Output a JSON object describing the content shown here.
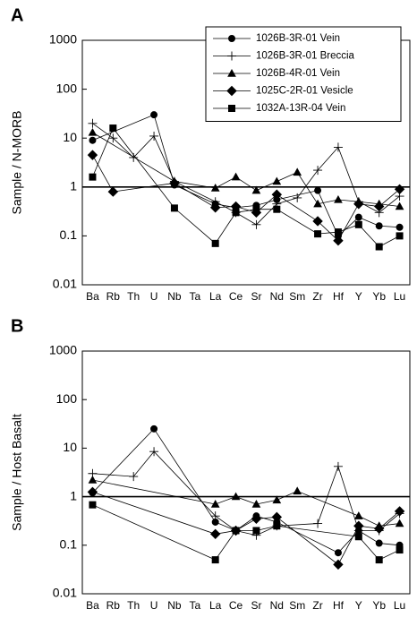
{
  "chart_data": [
    {
      "type": "line",
      "label": "A",
      "ylabel": "Sample / N-MORB",
      "log_y": true,
      "hline": 1,
      "categories": [
        "Ba",
        "Rb",
        "Th",
        "U",
        "Nb",
        "Ta",
        "La",
        "Ce",
        "Sr",
        "Nd",
        "Sm",
        "Zr",
        "Hf",
        "Y",
        "Yb",
        "Lu"
      ],
      "ylim": [
        0.01,
        1000
      ],
      "yticks": [
        0.01,
        0.1,
        1,
        10,
        100,
        1000
      ],
      "legend": "top-right",
      "series": [
        {
          "name": "1026B-3R-01 Vein",
          "marker": "circle",
          "color": "#000000",
          "x": [
            "Ba",
            "U",
            "Nb",
            "La",
            "Ce",
            "Sr",
            "Nd",
            "Zr",
            "Hf",
            "Y",
            "Yb",
            "Lu"
          ],
          "values": [
            9,
            30,
            1.1,
            0.45,
            0.38,
            0.42,
            0.55,
            0.85,
            0.1,
            0.24,
            0.16,
            0.15
          ]
        },
        {
          "name": "1026B-3R-01 Breccia",
          "marker": "plus",
          "color": "#000000",
          "x": [
            "Ba",
            "Rb",
            "Th",
            "U",
            "Nb",
            "La",
            "Ce",
            "Sr",
            "Nd",
            "Sm",
            "Zr",
            "Hf",
            "Y",
            "Yb",
            "Lu"
          ],
          "values": [
            20,
            10,
            4,
            11,
            1.3,
            0.5,
            0.3,
            0.17,
            0.45,
            0.6,
            2.2,
            6.5,
            0.5,
            0.3,
            0.65
          ]
        },
        {
          "name": "1026B-4R-01 Vein",
          "marker": "triangle",
          "color": "#000000",
          "x": [
            "Ba",
            "Nb",
            "La",
            "Ce",
            "Sr",
            "Nd",
            "Sm",
            "Zr",
            "Hf",
            "Y",
            "Yb",
            "Lu"
          ],
          "values": [
            13,
            1.3,
            0.95,
            1.6,
            0.85,
            1.3,
            2,
            0.45,
            0.55,
            0.5,
            0.45,
            0.4
          ]
        },
        {
          "name": "1025C-2R-01 Vesicle",
          "marker": "diamond",
          "color": "#000000",
          "x": [
            "Ba",
            "Rb",
            "Nb",
            "La",
            "Ce",
            "Sr",
            "Nd",
            "Zr",
            "Hf",
            "Y",
            "Yb",
            "Lu"
          ],
          "values": [
            4.5,
            0.8,
            1.2,
            0.38,
            0.4,
            0.3,
            0.7,
            0.2,
            0.08,
            0.45,
            0.4,
            0.9
          ]
        },
        {
          "name": "1032A-13R-04 Vein",
          "marker": "square",
          "color": "#000000",
          "x": [
            "Ba",
            "Rb",
            "Nb",
            "La",
            "Ce",
            "Sr",
            "Nd",
            "Zr",
            "Hf",
            "Y",
            "Yb",
            "Lu"
          ],
          "values": [
            1.6,
            16,
            0.37,
            0.07,
            0.3,
            0.35,
            0.35,
            0.11,
            0.12,
            0.17,
            0.06,
            0.1
          ]
        }
      ]
    },
    {
      "type": "line",
      "label": "B",
      "ylabel": "Sample / Host Basalt",
      "log_y": true,
      "hline": 1,
      "categories": [
        "Ba",
        "Rb",
        "Th",
        "U",
        "Nb",
        "Ta",
        "La",
        "Ce",
        "Sr",
        "Nd",
        "Sm",
        "Zr",
        "Hf",
        "Y",
        "Yb",
        "Lu"
      ],
      "ylim": [
        0.01,
        1000
      ],
      "yticks": [
        0.01,
        0.1,
        1,
        10,
        100,
        1000
      ],
      "series": [
        {
          "marker": "circle",
          "color": "#000000",
          "x": [
            "Ba",
            "U",
            "La",
            "Ce",
            "Sr",
            "Nd",
            "Hf",
            "Y",
            "Yb",
            "Lu"
          ],
          "values": [
            1.2,
            25,
            0.3,
            0.2,
            0.4,
            0.3,
            0.07,
            0.2,
            0.11,
            0.1
          ]
        },
        {
          "marker": "plus",
          "color": "#000000",
          "x": [
            "Ba",
            "Th",
            "U",
            "La",
            "Ce",
            "Sr",
            "Nd",
            "Zr",
            "Hf",
            "Y",
            "Yb",
            "Lu"
          ],
          "values": [
            3,
            2.6,
            8.5,
            0.4,
            0.2,
            0.16,
            0.25,
            0.28,
            4.2,
            0.2,
            0.2,
            0.45
          ]
        },
        {
          "marker": "triangle",
          "color": "#000000",
          "x": [
            "Ba",
            "La",
            "Ce",
            "Sr",
            "Nd",
            "Sm",
            "Y",
            "Yb",
            "Lu"
          ],
          "values": [
            2.2,
            0.7,
            1,
            0.7,
            0.85,
            1.3,
            0.4,
            0.25,
            0.28
          ]
        },
        {
          "marker": "diamond",
          "color": "#000000",
          "x": [
            "Ba",
            "La",
            "Ce",
            "Sr",
            "Nd",
            "Hf",
            "Y",
            "Yb",
            "Lu"
          ],
          "values": [
            1.25,
            0.17,
            0.2,
            0.35,
            0.38,
            0.04,
            0.25,
            0.22,
            0.5
          ]
        },
        {
          "marker": "square",
          "color": "#000000",
          "x": [
            "Ba",
            "La",
            "Ce",
            "Sr",
            "Nd",
            "Y",
            "Yb",
            "Lu"
          ],
          "values": [
            0.68,
            0.05,
            0.2,
            0.2,
            0.25,
            0.15,
            0.05,
            0.08
          ]
        }
      ]
    }
  ]
}
